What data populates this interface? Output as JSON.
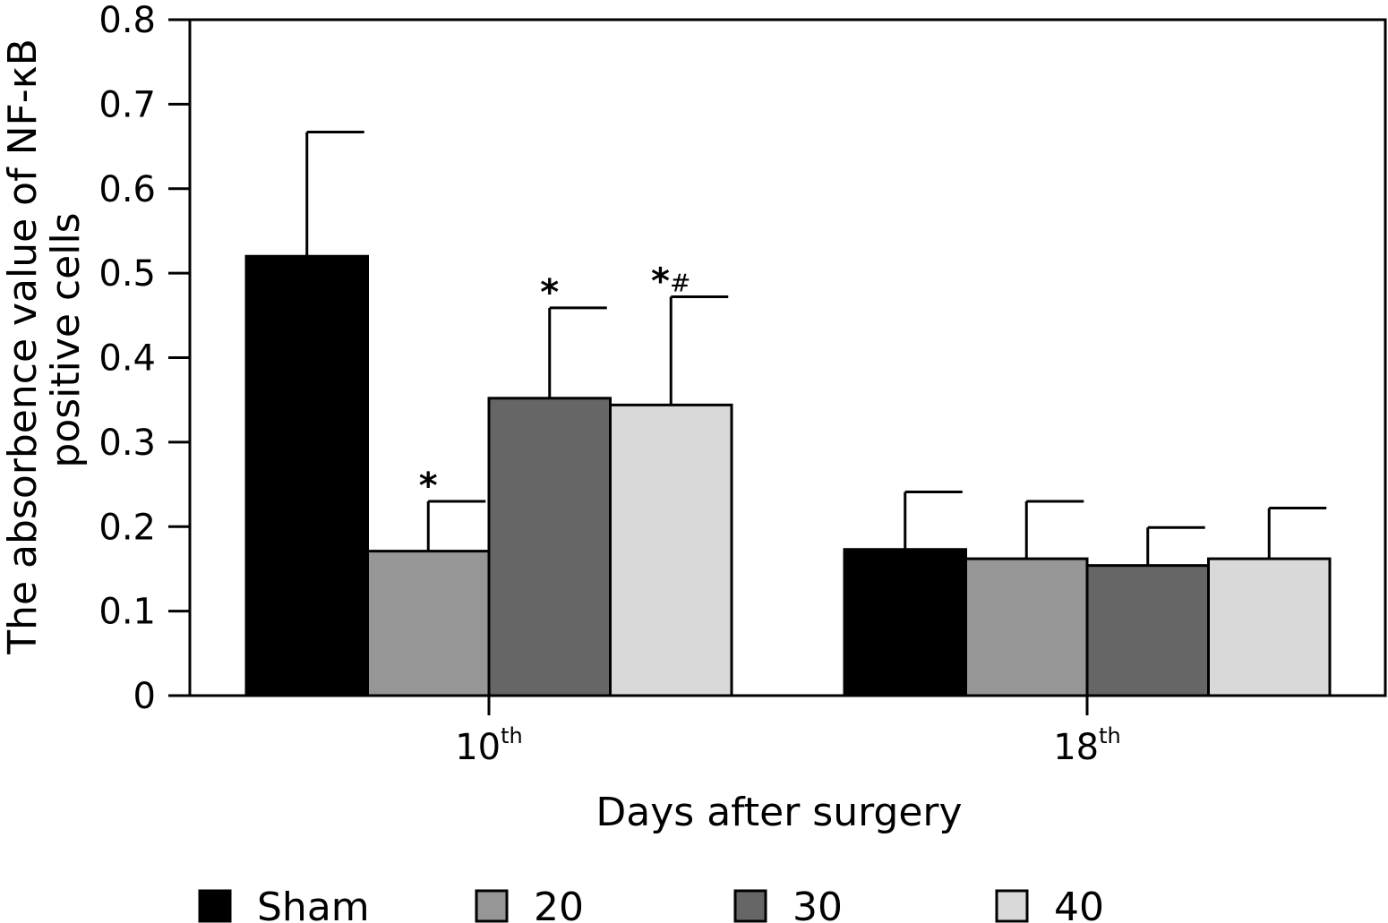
{
  "chart_data": {
    "type": "bar",
    "title": "",
    "xlabel": "Days after surgery",
    "ylabel_lines": [
      "The absorbence value of NF-κB",
      "positive cells"
    ],
    "ylim": [
      0,
      0.8
    ],
    "yticks": [
      "0",
      "0.1",
      "0.2",
      "0.3",
      "0.4",
      "0.5",
      "0.6",
      "0.7",
      "0.8"
    ],
    "categories": [
      {
        "base": "10",
        "sup": "th"
      },
      {
        "base": "18",
        "sup": "th"
      }
    ],
    "series": [
      {
        "name": "Sham",
        "color": "#000000",
        "values": [
          0.52,
          0.173
        ],
        "errors": [
          0.147,
          0.068
        ],
        "annotations": [
          "",
          ""
        ]
      },
      {
        "name": "20",
        "color": "#969696",
        "values": [
          0.171,
          0.162
        ],
        "errors": [
          0.059,
          0.068
        ],
        "annotations": [
          "*",
          ""
        ]
      },
      {
        "name": "30",
        "color": "#666666",
        "values": [
          0.352,
          0.154
        ],
        "errors": [
          0.107,
          0.045
        ],
        "annotations": [
          "*",
          ""
        ]
      },
      {
        "name": "40",
        "color": "#d9d9d9",
        "values": [
          0.344,
          0.162
        ],
        "errors": [
          0.128,
          0.06
        ],
        "annotations": [
          "*#",
          ""
        ]
      }
    ],
    "legend_position": "bottom",
    "grid": false
  }
}
